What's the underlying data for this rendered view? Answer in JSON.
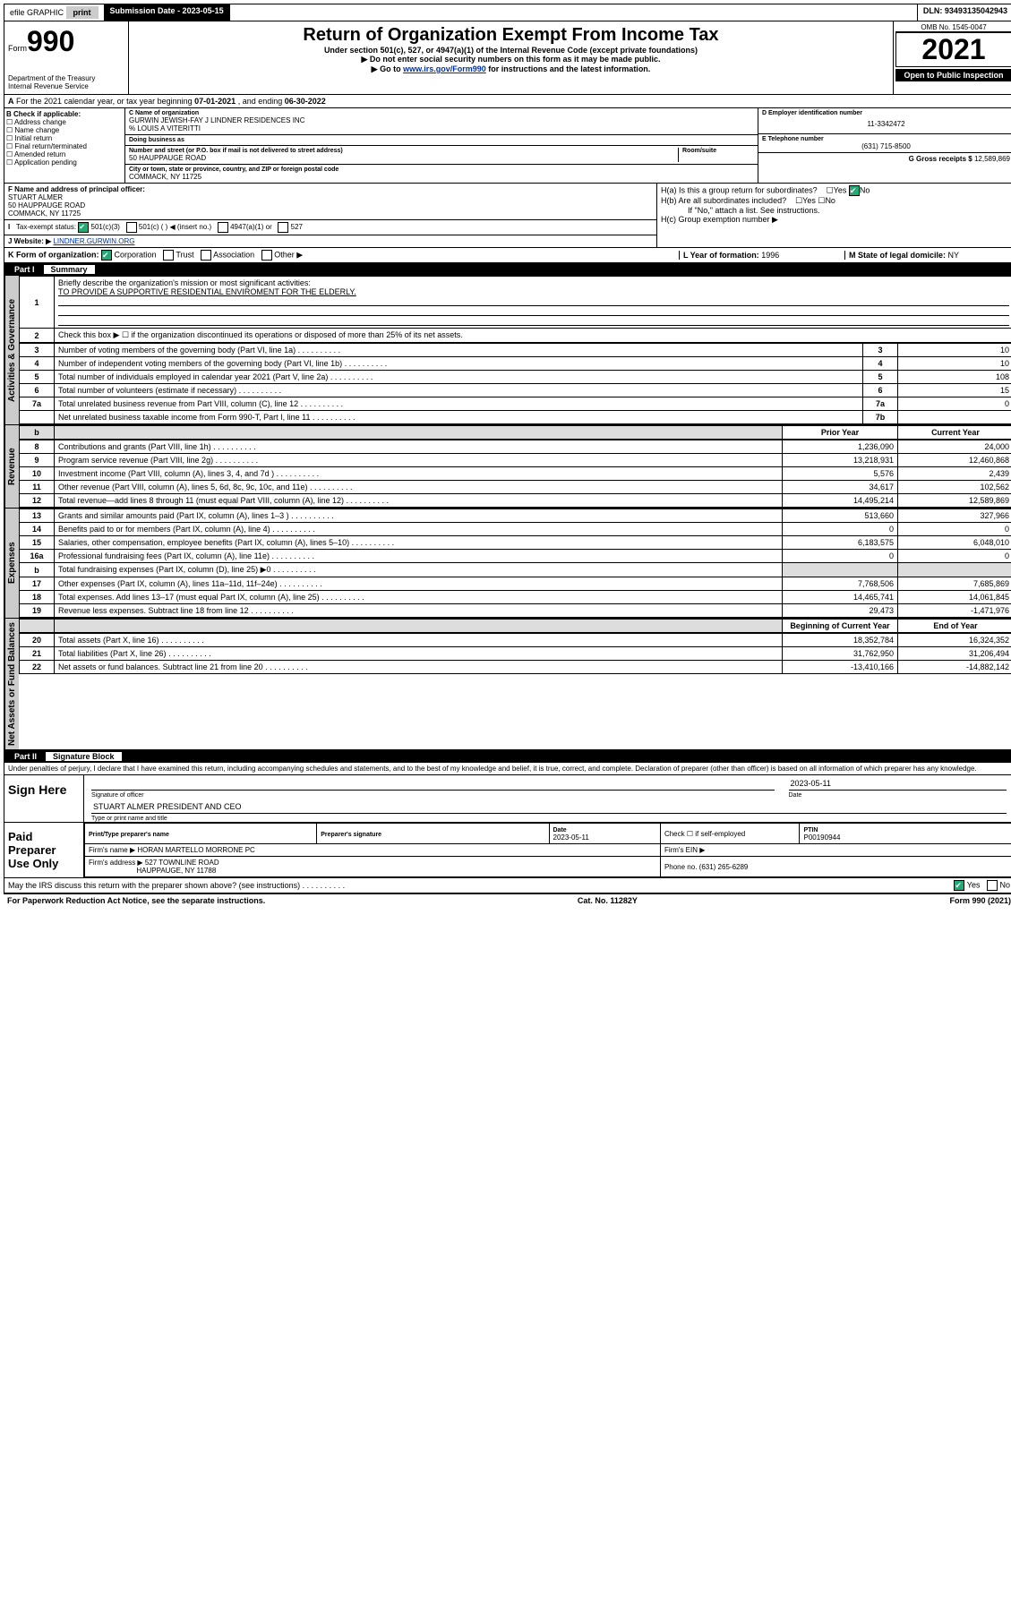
{
  "topbar": {
    "efile": "efile GRAPHIC",
    "print": "print",
    "sub_label": "Submission Date - 2023-05-15",
    "dln_label": "DLN: 93493135042943"
  },
  "header": {
    "form_prefix": "Form",
    "form_no": "990",
    "dept": "Department of the Treasury",
    "irs": "Internal Revenue Service",
    "title": "Return of Organization Exempt From Income Tax",
    "sub1": "Under section 501(c), 527, or 4947(a)(1) of the Internal Revenue Code (except private foundations)",
    "sub2": "▶ Do not enter social security numbers on this form as it may be made public.",
    "sub3_pre": "▶ Go to ",
    "sub3_link": "www.irs.gov/Form990",
    "sub3_post": " for instructions and the latest information.",
    "omb": "OMB No. 1545-0047",
    "year": "2021",
    "open": "Open to Public Inspection"
  },
  "rowA": {
    "text_pre": "For the 2021 calendar year, or tax year beginning ",
    "begin": "07-01-2021",
    "mid": " , and ending ",
    "end": "06-30-2022"
  },
  "boxB": {
    "title": "B Check if applicable:",
    "items": [
      "Address change",
      "Name change",
      "Initial return",
      "Final return/terminated",
      "Amended return",
      "Application pending"
    ]
  },
  "boxC": {
    "name_label": "C Name of organization",
    "name": "GURWIN JEWISH-FAY J LINDNER RESIDENCES INC",
    "care_of": "% LOUIS A VITERITTI",
    "dba_label": "Doing business as",
    "addr_label": "Number and street (or P.O. box if mail is not delivered to street address)",
    "suite_label": "Room/suite",
    "addr": "50 HAUPPAUGE ROAD",
    "city_label": "City or town, state or province, country, and ZIP or foreign postal code",
    "city": "COMMACK, NY  11725"
  },
  "boxD": {
    "label": "D Employer identification number",
    "val": "11-3342472"
  },
  "boxE": {
    "label": "E Telephone number",
    "val": "(631) 715-8500"
  },
  "boxG": {
    "label": "G Gross receipts $",
    "val": "12,589,869"
  },
  "boxF": {
    "label": "F Name and address of principal officer:",
    "name": "STUART ALMER",
    "addr1": "50 HAUPPAUGE ROAD",
    "addr2": "COMMACK, NY  11725"
  },
  "boxH": {
    "ha": "H(a)  Is this a group return for subordinates?",
    "hb": "H(b)  Are all subordinates included?",
    "note": "If \"No,\" attach a list. See instructions.",
    "hc": "H(c)  Group exemption number ▶",
    "yes": "Yes",
    "no": "No"
  },
  "rowI": {
    "label": "Tax-exempt status:",
    "opts": [
      "501(c)(3)",
      "501(c) (  ) ◀ (insert no.)",
      "4947(a)(1) or",
      "527"
    ]
  },
  "rowJ": {
    "label": "J   Website: ▶",
    "val": "LINDNER.GURWIN.ORG"
  },
  "rowK": {
    "label": "K Form of organization:",
    "opts": [
      "Corporation",
      "Trust",
      "Association",
      "Other ▶"
    ]
  },
  "rowL": {
    "label": "L Year of formation:",
    "val": "1996"
  },
  "rowM": {
    "label": "M State of legal domicile:",
    "val": "NY"
  },
  "part1": {
    "num": "Part I",
    "title": "Summary"
  },
  "summary": {
    "q1": "Briefly describe the organization's mission or most significant activities:",
    "q1a": "TO PROVIDE A SUPPORTIVE RESIDENTIAL ENVIROMENT FOR THE ELDERLY.",
    "q2": "Check this box ▶ ☐ if the organization discontinued its operations or disposed of more than 25% of its net assets.",
    "rows_act": [
      {
        "n": "3",
        "label": "Number of voting members of the governing body (Part VI, line 1a)",
        "box": "3",
        "val": "10"
      },
      {
        "n": "4",
        "label": "Number of independent voting members of the governing body (Part VI, line 1b)",
        "box": "4",
        "val": "10"
      },
      {
        "n": "5",
        "label": "Total number of individuals employed in calendar year 2021 (Part V, line 2a)",
        "box": "5",
        "val": "108"
      },
      {
        "n": "6",
        "label": "Total number of volunteers (estimate if necessary)",
        "box": "6",
        "val": "15"
      },
      {
        "n": "7a",
        "label": "Total unrelated business revenue from Part VIII, column (C), line 12",
        "box": "7a",
        "val": "0"
      },
      {
        "n": "",
        "label": "Net unrelated business taxable income from Form 990-T, Part I, line 11",
        "box": "7b",
        "val": ""
      }
    ],
    "header_py": "Prior Year",
    "header_cy": "Current Year",
    "rows_rev": [
      {
        "n": "8",
        "label": "Contributions and grants (Part VIII, line 1h)",
        "py": "1,236,090",
        "cy": "24,000"
      },
      {
        "n": "9",
        "label": "Program service revenue (Part VIII, line 2g)",
        "py": "13,218,931",
        "cy": "12,460,868"
      },
      {
        "n": "10",
        "label": "Investment income (Part VIII, column (A), lines 3, 4, and 7d )",
        "py": "5,576",
        "cy": "2,439"
      },
      {
        "n": "11",
        "label": "Other revenue (Part VIII, column (A), lines 5, 6d, 8c, 9c, 10c, and 11e)",
        "py": "34,617",
        "cy": "102,562"
      },
      {
        "n": "12",
        "label": "Total revenue—add lines 8 through 11 (must equal Part VIII, column (A), line 12)",
        "py": "14,495,214",
        "cy": "12,589,869"
      }
    ],
    "rows_exp": [
      {
        "n": "13",
        "label": "Grants and similar amounts paid (Part IX, column (A), lines 1–3 )",
        "py": "513,660",
        "cy": "327,966"
      },
      {
        "n": "14",
        "label": "Benefits paid to or for members (Part IX, column (A), line 4)",
        "py": "0",
        "cy": "0"
      },
      {
        "n": "15",
        "label": "Salaries, other compensation, employee benefits (Part IX, column (A), lines 5–10)",
        "py": "6,183,575",
        "cy": "6,048,010"
      },
      {
        "n": "16a",
        "label": "Professional fundraising fees (Part IX, column (A), line 11e)",
        "py": "0",
        "cy": "0"
      },
      {
        "n": "b",
        "label": "Total fundraising expenses (Part IX, column (D), line 25) ▶0",
        "py": "",
        "cy": "",
        "gray": true
      },
      {
        "n": "17",
        "label": "Other expenses (Part IX, column (A), lines 11a–11d, 11f–24e)",
        "py": "7,768,506",
        "cy": "7,685,869"
      },
      {
        "n": "18",
        "label": "Total expenses. Add lines 13–17 (must equal Part IX, column (A), line 25)",
        "py": "14,465,741",
        "cy": "14,061,845"
      },
      {
        "n": "19",
        "label": "Revenue less expenses. Subtract line 18 from line 12",
        "py": "29,473",
        "cy": "-1,471,976"
      }
    ],
    "header_boy": "Beginning of Current Year",
    "header_eoy": "End of Year",
    "rows_net": [
      {
        "n": "20",
        "label": "Total assets (Part X, line 16)",
        "py": "18,352,784",
        "cy": "16,324,352"
      },
      {
        "n": "21",
        "label": "Total liabilities (Part X, line 26)",
        "py": "31,762,950",
        "cy": "31,206,494"
      },
      {
        "n": "22",
        "label": "Net assets or fund balances. Subtract line 21 from line 20",
        "py": "-13,410,166",
        "cy": "-14,882,142"
      }
    ],
    "vtabs": [
      "Activities & Governance",
      "Revenue",
      "Expenses",
      "Net Assets or Fund Balances"
    ]
  },
  "part2": {
    "num": "Part II",
    "title": "Signature Block"
  },
  "sig": {
    "penalty": "Under penalties of perjury, I declare that I have examined this return, including accompanying schedules and statements, and to the best of my knowledge and belief, it is true, correct, and complete. Declaration of preparer (other than officer) is based on all information of which preparer has any knowledge.",
    "sign_here": "Sign Here",
    "sig_officer": "Signature of officer",
    "date": "Date",
    "date_val": "2023-05-11",
    "officer_name": "STUART ALMER  PRESIDENT AND CEO",
    "type_name": "Type or print name and title",
    "paid": "Paid Preparer Use Only",
    "prep_name_label": "Print/Type preparer's name",
    "prep_sig_label": "Preparer's signature",
    "prep_date_label": "Date",
    "prep_date": "2023-05-11",
    "check_self": "Check ☐ if self-employed",
    "ptin_label": "PTIN",
    "ptin": "P00190944",
    "firm_name_label": "Firm's name    ▶",
    "firm_name": "HORAN MARTELLO MORRONE PC",
    "firm_ein_label": "Firm's EIN ▶",
    "firm_addr_label": "Firm's address ▶",
    "firm_addr1": "527 TOWNLINE ROAD",
    "firm_addr2": "HAUPPAUGE, NY  11788",
    "phone_label": "Phone no.",
    "phone": "(631) 265-6289",
    "discuss": "May the IRS discuss this return with the preparer shown above? (see instructions)",
    "yes": "Yes",
    "no": "No"
  },
  "footer": {
    "left": "For Paperwork Reduction Act Notice, see the separate instructions.",
    "mid": "Cat. No. 11282Y",
    "right": "Form 990 (2021)"
  }
}
